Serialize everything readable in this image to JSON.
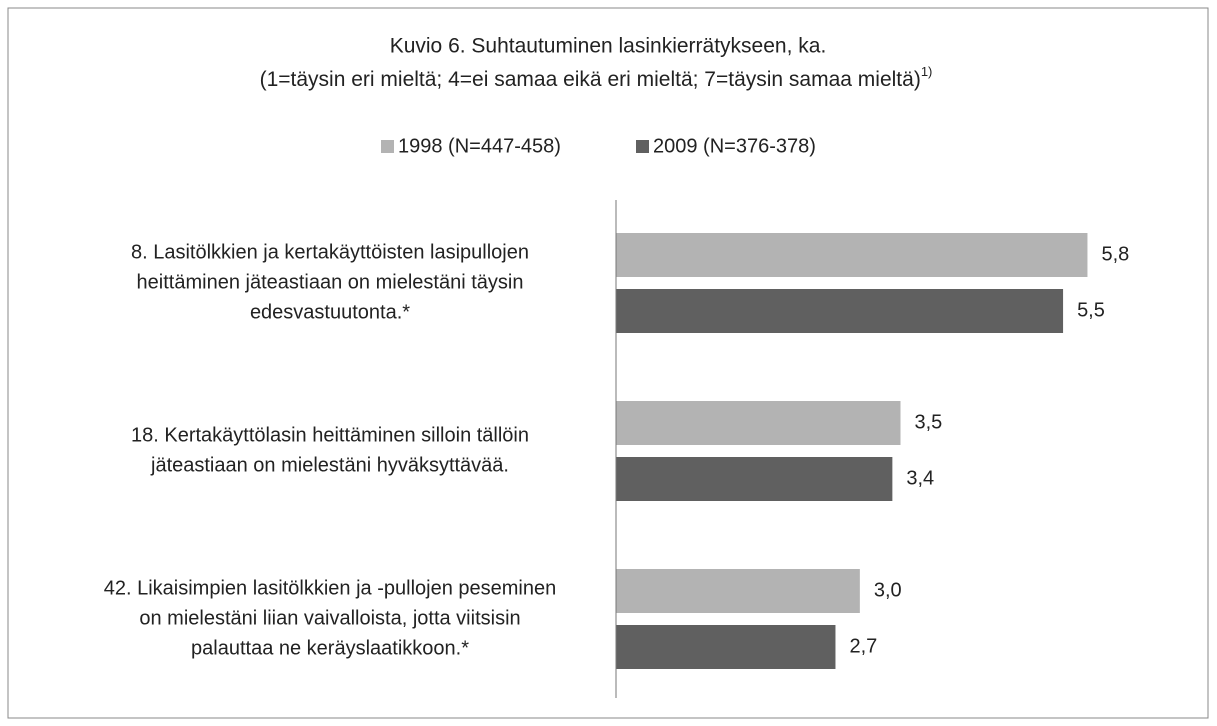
{
  "chart_data": {
    "type": "bar",
    "orientation": "horizontal",
    "title": [
      "Kuvio 6. Suhtautuminen lasinkierrätykseen, ka.",
      "(1=täysin eri mieltä; 4=ei samaa eikä eri mieltä; 7=täysin samaa mieltä)"
    ],
    "title_superscript": "1)",
    "categories": [
      [
        "8. Lasitölkkien ja kertakäyttöisten lasipullojen",
        "heittäminen jäteastiaan on mielestäni täysin",
        "edesvastuutonta.*"
      ],
      [
        "18. Kertakäyttölasin heittäminen silloin tällöin",
        "jäteastiaan on mielestäni hyväksyttävää."
      ],
      [
        "42. Likaisimpien lasitölkkien ja -pullojen peseminen",
        "on mielestäni liian vaivalloista, jotta viitsisin",
        "palauttaa ne keräyslaatikkoon.*"
      ]
    ],
    "series": [
      {
        "name": "1998 (N=447-458)",
        "color": "#b3b3b3",
        "values": [
          5.8,
          3.5,
          3.0
        ],
        "value_labels": [
          "5,8",
          "3,5",
          "3,0"
        ]
      },
      {
        "name": "2009 (N=376-378)",
        "color": "#606060",
        "values": [
          5.5,
          3.4,
          2.7
        ],
        "value_labels": [
          "5,5",
          "3,4",
          "2,7"
        ]
      }
    ],
    "xlim": [
      0,
      7
    ],
    "legend": "top"
  }
}
